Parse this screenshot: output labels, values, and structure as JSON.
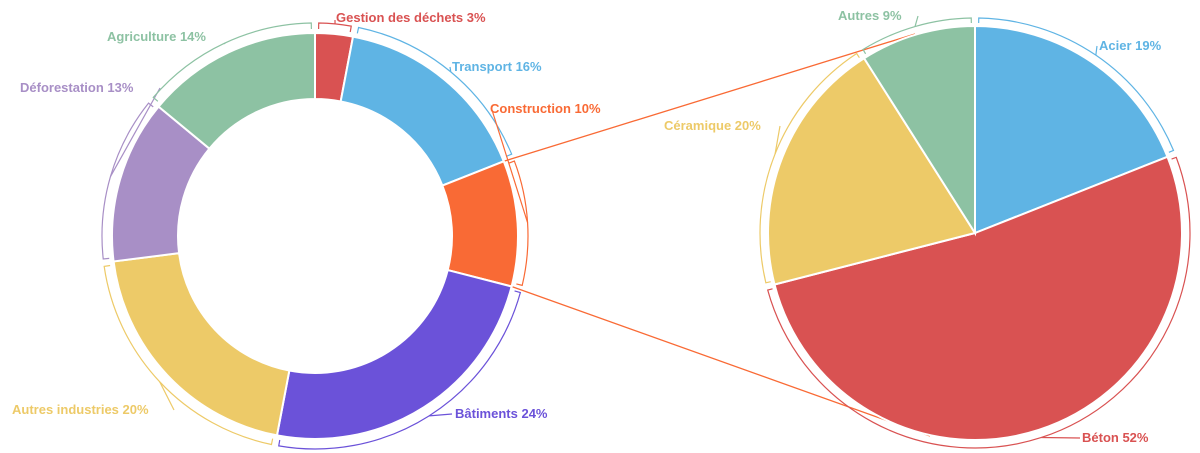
{
  "chart_data": [
    {
      "type": "pie",
      "variant": "donut",
      "slices": [
        {
          "name": "Gestion des déchets",
          "value": 3,
          "label": "Gestion des déchets 3%",
          "color": "#d95252"
        },
        {
          "name": "Transport",
          "value": 16,
          "label": "Transport 16%",
          "color": "#5fb4e4"
        },
        {
          "name": "Construction",
          "value": 10,
          "label": "Construction 10%",
          "color": "#f96a35"
        },
        {
          "name": "Bâtiments",
          "value": 24,
          "label": "Bâtiments 24%",
          "color": "#6b52d9"
        },
        {
          "name": "Autres industries",
          "value": 20,
          "label": "Autres industries 20%",
          "color": "#edca68"
        },
        {
          "name": "Déforestation",
          "value": 13,
          "label": "Déforestation 13%",
          "color": "#a88fc6"
        },
        {
          "name": "Agriculture",
          "value": 14,
          "label": "Agriculture 14%",
          "color": "#8dc2a3"
        }
      ]
    },
    {
      "type": "pie",
      "breakdown_of": "Construction",
      "slices": [
        {
          "name": "Acier",
          "value": 19,
          "label": "Acier 19%",
          "color": "#5fb4e4"
        },
        {
          "name": "Béton",
          "value": 52,
          "label": "Béton 52%",
          "color": "#d95252"
        },
        {
          "name": "Céramique",
          "value": 20,
          "label": "Céramique 20%",
          "color": "#edca68"
        },
        {
          "name": "Autres",
          "value": 9,
          "label": "Autres 9%",
          "color": "#8dc2a3"
        }
      ]
    }
  ],
  "connector_color": "#f96a35"
}
